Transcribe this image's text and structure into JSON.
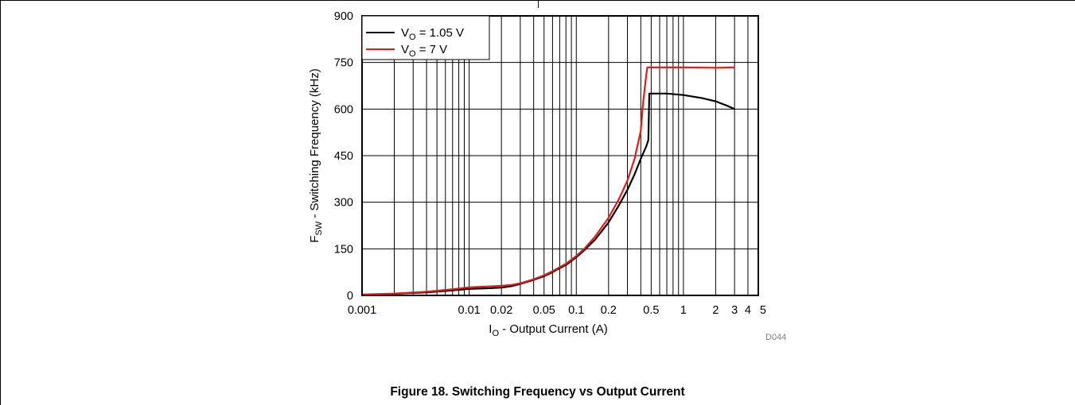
{
  "caption": "Figure 18. Switching Frequency vs Output Current",
  "figure_code": "D044",
  "chart_data": {
    "type": "line",
    "x_scale": "log",
    "xlim": [
      0.001,
      5
    ],
    "ylim": [
      0,
      900
    ],
    "grid": true,
    "legend_position": "top-left",
    "ylabel": {
      "main": "F",
      "sub": "SW",
      "rest": " - Switching Frequency (kHz)"
    },
    "xlabel": {
      "main": "I",
      "sub": "O",
      "rest": " - Output Current (A)"
    },
    "y_ticks": [
      "0",
      "150",
      "300",
      "450",
      "600",
      "750",
      "900"
    ],
    "y_tick_values": [
      0,
      150,
      300,
      450,
      600,
      750,
      900
    ],
    "x_ticks": [
      "0.001",
      "0.01",
      "0.02",
      "0.05",
      "0.1",
      "0.2",
      "0.5",
      "1",
      "2",
      "3",
      "4",
      "5"
    ],
    "x_tick_values": [
      0.001,
      0.01,
      0.02,
      0.05,
      0.1,
      0.2,
      0.5,
      1,
      2,
      3,
      4,
      5
    ],
    "series": [
      {
        "name": {
          "main": "V",
          "sub": "O",
          "rest": " = 1.05 V"
        },
        "color": "#000000",
        "points": [
          [
            0.001,
            2
          ],
          [
            0.002,
            5
          ],
          [
            0.004,
            10
          ],
          [
            0.007,
            16
          ],
          [
            0.01,
            21
          ],
          [
            0.015,
            23
          ],
          [
            0.02,
            25
          ],
          [
            0.025,
            30
          ],
          [
            0.03,
            37
          ],
          [
            0.04,
            50
          ],
          [
            0.05,
            62
          ],
          [
            0.06,
            75
          ],
          [
            0.07,
            88
          ],
          [
            0.08,
            98
          ],
          [
            0.1,
            123
          ],
          [
            0.12,
            147
          ],
          [
            0.15,
            180
          ],
          [
            0.2,
            235
          ],
          [
            0.25,
            290
          ],
          [
            0.3,
            340
          ],
          [
            0.35,
            390
          ],
          [
            0.4,
            440
          ],
          [
            0.45,
            480
          ],
          [
            0.47,
            500
          ],
          [
            0.48,
            650
          ],
          [
            0.7,
            650
          ],
          [
            1,
            645
          ],
          [
            1.5,
            635
          ],
          [
            2,
            625
          ],
          [
            2.5,
            612
          ],
          [
            3,
            600
          ]
        ]
      },
      {
        "name": {
          "main": "V",
          "sub": "O",
          "rest": " = 7 V"
        },
        "color": "#e41b17",
        "points": [
          [
            0.001,
            3
          ],
          [
            0.002,
            6
          ],
          [
            0.004,
            12
          ],
          [
            0.007,
            20
          ],
          [
            0.01,
            26
          ],
          [
            0.015,
            29
          ],
          [
            0.02,
            31
          ],
          [
            0.025,
            34
          ],
          [
            0.03,
            39
          ],
          [
            0.04,
            52
          ],
          [
            0.05,
            65
          ],
          [
            0.06,
            78
          ],
          [
            0.07,
            91
          ],
          [
            0.08,
            102
          ],
          [
            0.1,
            127
          ],
          [
            0.12,
            152
          ],
          [
            0.15,
            190
          ],
          [
            0.2,
            250
          ],
          [
            0.25,
            310
          ],
          [
            0.3,
            370
          ],
          [
            0.35,
            440
          ],
          [
            0.4,
            530
          ],
          [
            0.42,
            620
          ],
          [
            0.45,
            710
          ],
          [
            0.46,
            734
          ],
          [
            1,
            734
          ],
          [
            2,
            733
          ],
          [
            3,
            734
          ]
        ]
      }
    ]
  }
}
